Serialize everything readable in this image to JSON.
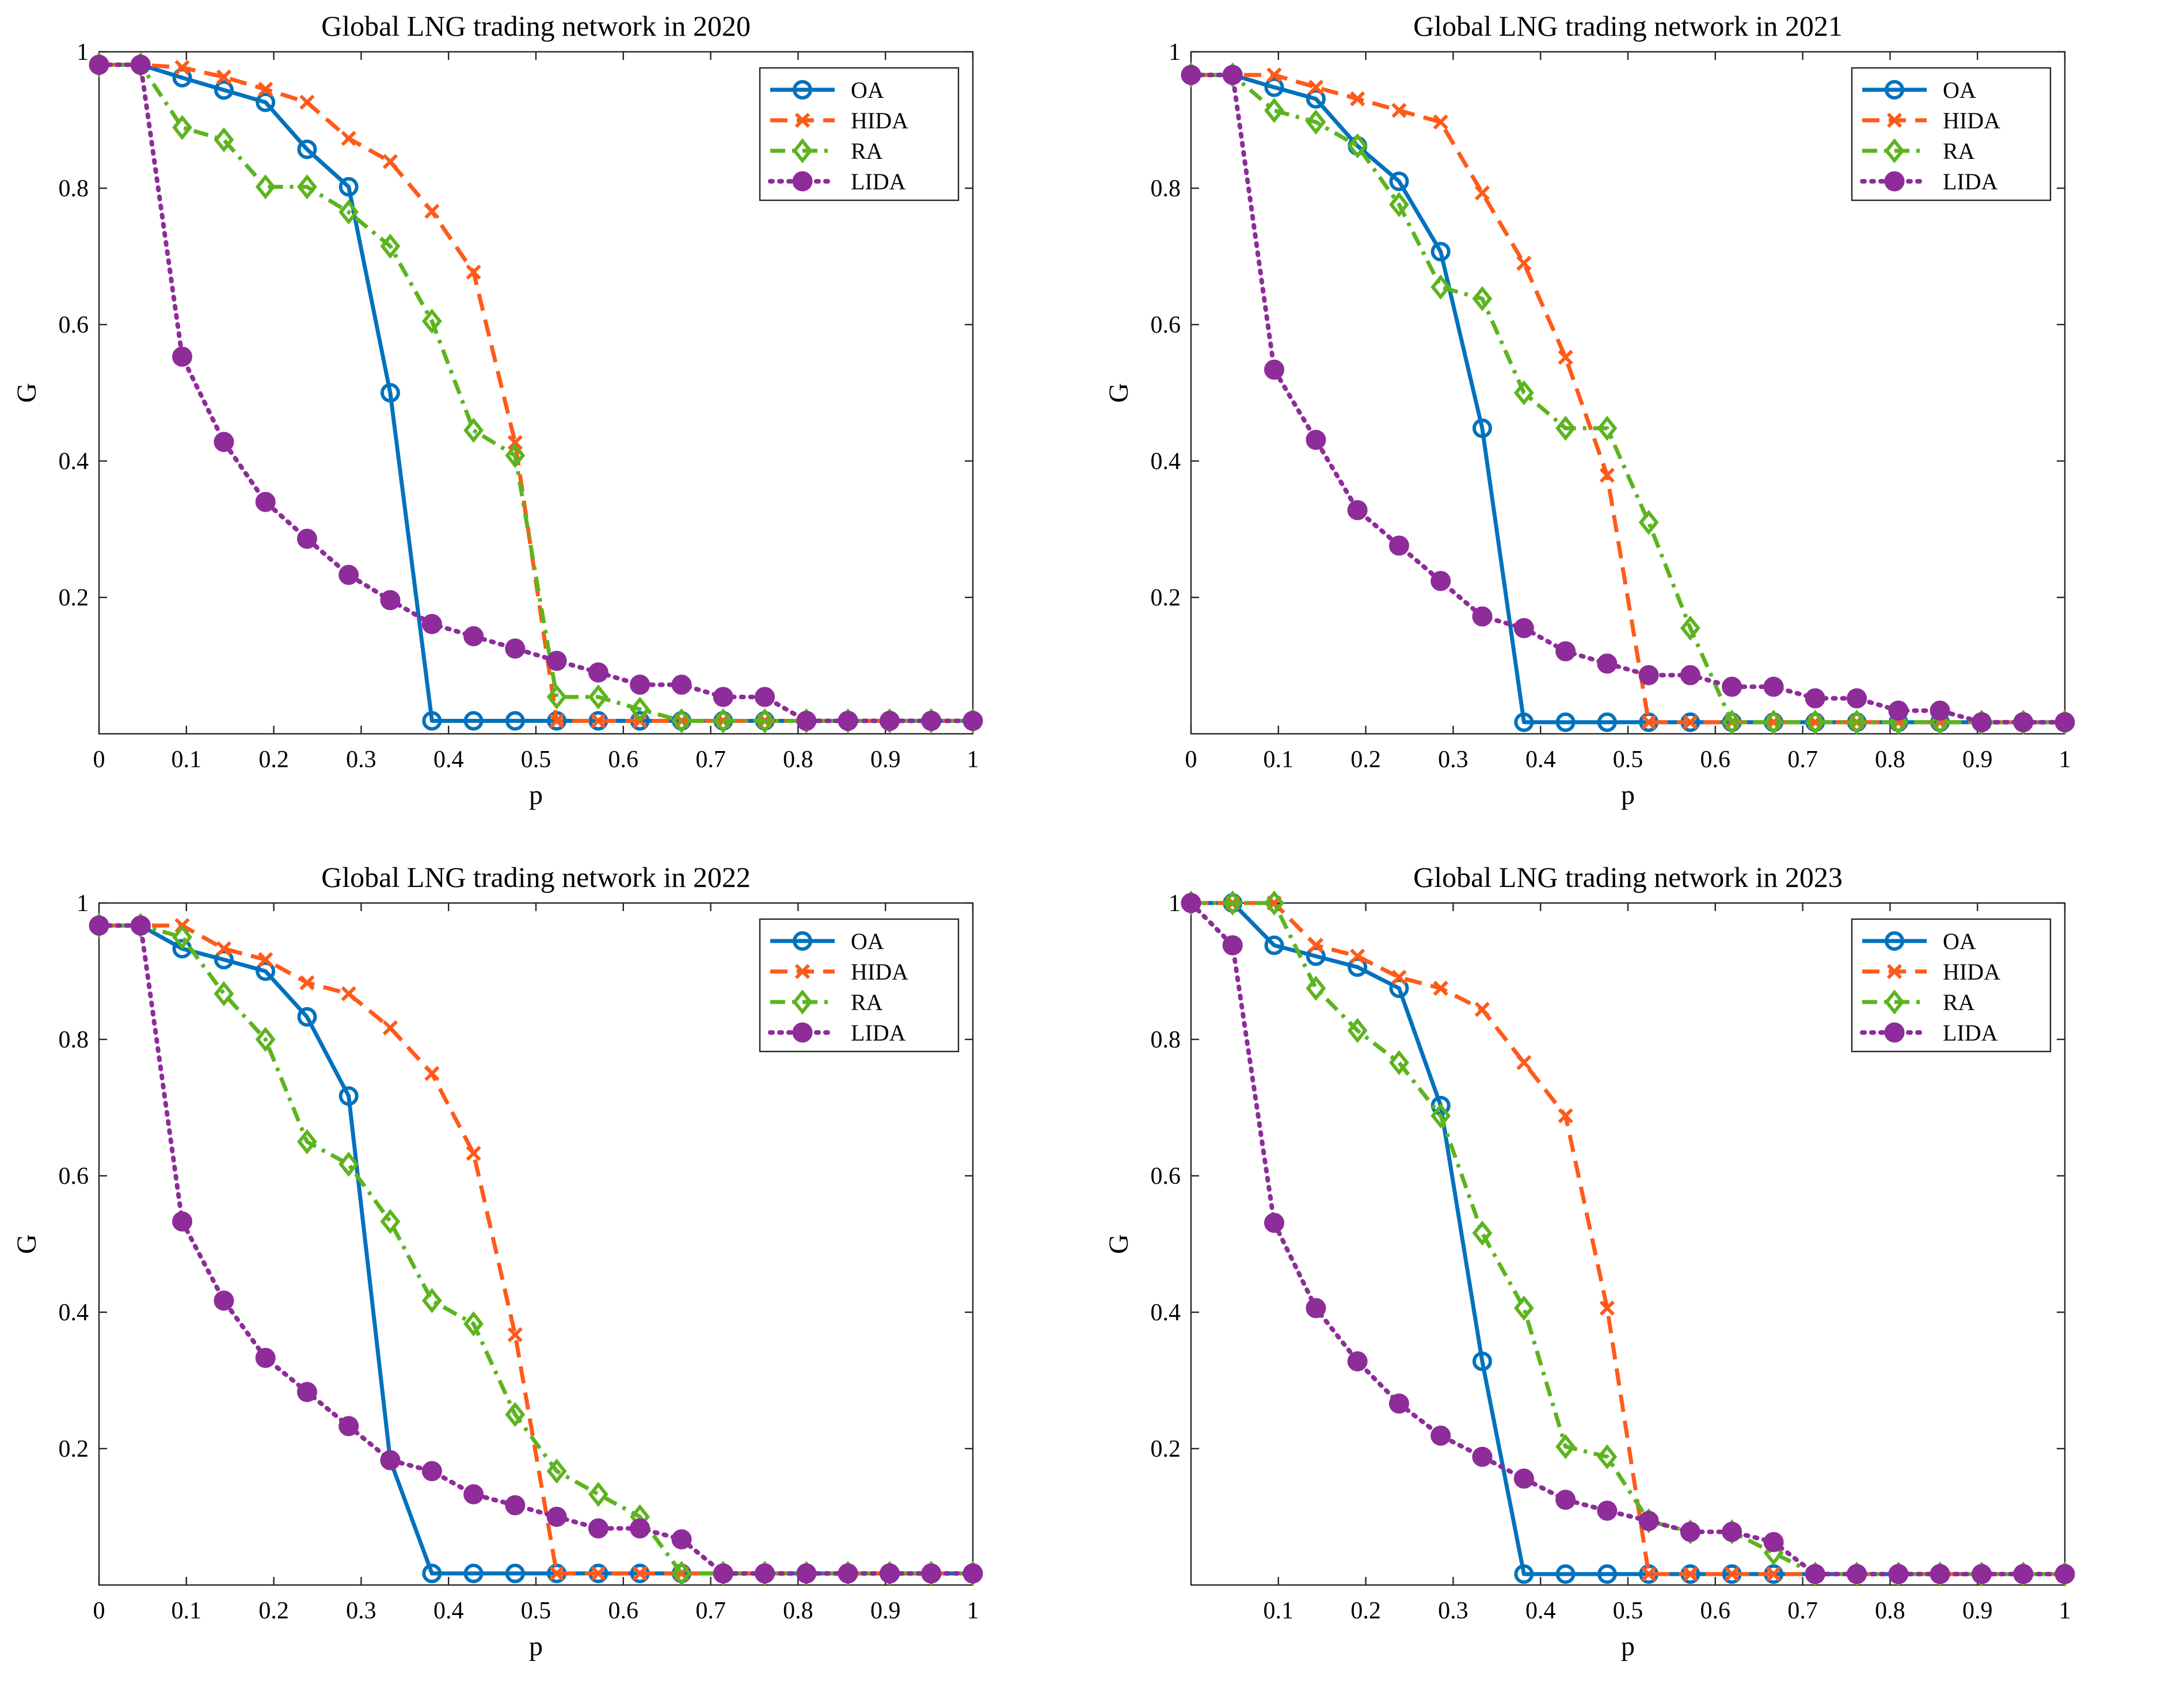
{
  "figure": {
    "colors": {
      "OA": "#0072BD",
      "HIDA": "#FF5A1A",
      "RA": "#5CB41E",
      "LIDA": "#8E2C9A"
    },
    "legend_entries": [
      "OA",
      "HIDA",
      "RA",
      "LIDA"
    ]
  },
  "chart_data": [
    {
      "type": "line",
      "title": "Global LNG trading network in 2020",
      "xlabel": "p",
      "ylabel": "G",
      "xlim": [
        0,
        1
      ],
      "ylim": [
        0,
        1
      ],
      "xticks": [
        "0",
        "0.1",
        "0.2",
        "0.3",
        "0.4",
        "0.5",
        "0.6",
        "0.7",
        "0.8",
        "0.9",
        "1"
      ],
      "yticks": [
        "0.2",
        "0.4",
        "0.6",
        "0.8",
        "1"
      ],
      "legend": "top-right",
      "grid": false,
      "x": [
        0,
        0.0476,
        0.0952,
        0.1429,
        0.1905,
        0.2381,
        0.2857,
        0.3333,
        0.381,
        0.4286,
        0.4762,
        0.5238,
        0.5714,
        0.619,
        0.6667,
        0.7143,
        0.7619,
        0.8095,
        0.8571,
        0.9048,
        0.9524,
        1
      ],
      "series": [
        {
          "name": "OA",
          "values": [
            0.981,
            0.981,
            0.962,
            0.944,
            0.926,
            0.857,
            0.802,
            0.5,
            0.019,
            0.019,
            0.019,
            0.019,
            0.019,
            0.019,
            0.019,
            0.019,
            0.019,
            0.019,
            0.019,
            0.019,
            0.019,
            0.019
          ]
        },
        {
          "name": "HIDA",
          "values": [
            0.981,
            0.981,
            0.977,
            0.963,
            0.945,
            0.926,
            0.873,
            0.839,
            0.766,
            0.677,
            0.427,
            0.019,
            0.019,
            0.019,
            0.019,
            0.019,
            0.019,
            0.019,
            0.019,
            0.019,
            0.019,
            0.019
          ]
        },
        {
          "name": "RA",
          "values": [
            0.981,
            0.981,
            0.889,
            0.871,
            0.802,
            0.802,
            0.765,
            0.715,
            0.605,
            0.445,
            0.408,
            0.054,
            0.054,
            0.036,
            0.019,
            0.019,
            0.019,
            0.019,
            0.019,
            0.019,
            0.019,
            0.019
          ]
        },
        {
          "name": "LIDA",
          "values": [
            0.981,
            0.981,
            0.553,
            0.428,
            0.34,
            0.286,
            0.233,
            0.196,
            0.161,
            0.143,
            0.125,
            0.107,
            0.09,
            0.072,
            0.072,
            0.054,
            0.054,
            0.019,
            0.019,
            0.019,
            0.019,
            0.019
          ]
        }
      ]
    },
    {
      "type": "line",
      "title": "Global LNG trading network in 2021",
      "xlabel": "p",
      "ylabel": "G",
      "xlim": [
        0,
        1
      ],
      "ylim": [
        0,
        1
      ],
      "xticks": [
        "0",
        "0.1",
        "0.2",
        "0.3",
        "0.4",
        "0.5",
        "0.6",
        "0.7",
        "0.8",
        "0.9",
        "1"
      ],
      "yticks": [
        "0.2",
        "0.4",
        "0.6",
        "0.8",
        "1"
      ],
      "legend": "top-right",
      "grid": false,
      "x": [
        0,
        0.0476,
        0.0952,
        0.1429,
        0.1905,
        0.2381,
        0.2857,
        0.3333,
        0.381,
        0.4286,
        0.4762,
        0.5238,
        0.5714,
        0.619,
        0.6667,
        0.7143,
        0.7619,
        0.8095,
        0.8571,
        0.9048,
        0.9524,
        1
      ],
      "series": [
        {
          "name": "OA",
          "values": [
            0.966,
            0.966,
            0.948,
            0.931,
            0.862,
            0.81,
            0.707,
            0.448,
            0.017,
            0.017,
            0.017,
            0.017,
            0.017,
            0.017,
            0.017,
            0.017,
            0.017,
            0.017,
            0.017,
            0.017,
            0.017,
            0.017
          ]
        },
        {
          "name": "HIDA",
          "values": [
            0.966,
            0.966,
            0.966,
            0.948,
            0.931,
            0.914,
            0.897,
            0.793,
            0.69,
            0.552,
            0.379,
            0.017,
            0.017,
            0.017,
            0.017,
            0.017,
            0.017,
            0.017,
            0.017,
            0.017,
            0.017,
            0.017
          ]
        },
        {
          "name": "RA",
          "values": [
            0.966,
            0.966,
            0.914,
            0.897,
            0.862,
            0.776,
            0.655,
            0.638,
            0.5,
            0.448,
            0.448,
            0.31,
            0.155,
            0.017,
            0.017,
            0.017,
            0.017,
            0.017,
            0.017,
            0.017,
            0.017,
            0.017
          ]
        },
        {
          "name": "LIDA",
          "values": [
            0.966,
            0.966,
            0.534,
            0.431,
            0.328,
            0.276,
            0.224,
            0.172,
            0.155,
            0.121,
            0.103,
            0.086,
            0.086,
            0.069,
            0.069,
            0.052,
            0.052,
            0.034,
            0.034,
            0.017,
            0.017,
            0.017
          ]
        }
      ]
    },
    {
      "type": "line",
      "title": "Global LNG trading network in 2022",
      "xlabel": "p",
      "ylabel": "G",
      "xlim": [
        0,
        1
      ],
      "ylim": [
        0,
        1
      ],
      "xticks": [
        "0",
        "0.1",
        "0.2",
        "0.3",
        "0.4",
        "0.5",
        "0.6",
        "0.7",
        "0.8",
        "0.9",
        "1"
      ],
      "yticks": [
        "0.2",
        "0.4",
        "0.6",
        "0.8",
        "1"
      ],
      "legend": "top-right",
      "grid": false,
      "x": [
        0,
        0.0476,
        0.0952,
        0.1429,
        0.1905,
        0.2381,
        0.2857,
        0.3333,
        0.381,
        0.4286,
        0.4762,
        0.5238,
        0.5714,
        0.619,
        0.6667,
        0.7143,
        0.7619,
        0.8095,
        0.8571,
        0.9048,
        0.9524,
        1
      ],
      "series": [
        {
          "name": "OA",
          "values": [
            0.967,
            0.967,
            0.933,
            0.917,
            0.9,
            0.833,
            0.717,
            0.183,
            0.017,
            0.017,
            0.017,
            0.017,
            0.017,
            0.017,
            0.017,
            0.017,
            0.017,
            0.017,
            0.017,
            0.017,
            0.017,
            0.017
          ]
        },
        {
          "name": "HIDA",
          "values": [
            0.967,
            0.967,
            0.967,
            0.933,
            0.917,
            0.883,
            0.867,
            0.817,
            0.75,
            0.633,
            0.367,
            0.017,
            0.017,
            0.017,
            0.017,
            0.017,
            0.017,
            0.017,
            0.017,
            0.017,
            0.017,
            0.017
          ]
        },
        {
          "name": "RA",
          "values": [
            0.967,
            0.967,
            0.95,
            0.867,
            0.8,
            0.65,
            0.617,
            0.533,
            0.417,
            0.383,
            0.25,
            0.167,
            0.133,
            0.1,
            0.017,
            0.017,
            0.017,
            0.017,
            0.017,
            0.017,
            0.017,
            0.017
          ]
        },
        {
          "name": "LIDA",
          "values": [
            0.967,
            0.967,
            0.533,
            0.417,
            0.333,
            0.283,
            0.233,
            0.183,
            0.167,
            0.133,
            0.117,
            0.1,
            0.083,
            0.083,
            0.067,
            0.017,
            0.017,
            0.017,
            0.017,
            0.017,
            0.017,
            0.017
          ]
        }
      ]
    },
    {
      "type": "line",
      "title": "Global LNG trading network in 2023",
      "xlabel": "p",
      "ylabel": "G",
      "xlim": [
        0,
        1
      ],
      "ylim": [
        0,
        1
      ],
      "xticks": [
        "0.1",
        "0.2",
        "0.3",
        "0.4",
        "0.5",
        "0.6",
        "0.7",
        "0.8",
        "0.9",
        "1"
      ],
      "yticks": [
        "0.2",
        "0.4",
        "0.6",
        "0.8",
        "1"
      ],
      "legend": "top-right",
      "grid": false,
      "x": [
        0,
        0.0476,
        0.0952,
        0.1429,
        0.1905,
        0.2381,
        0.2857,
        0.3333,
        0.381,
        0.4286,
        0.4762,
        0.5238,
        0.5714,
        0.619,
        0.6667,
        0.7143,
        0.7619,
        0.8095,
        0.8571,
        0.9048,
        0.9524,
        1
      ],
      "series": [
        {
          "name": "OA",
          "values": [
            1.0,
            1.0,
            0.938,
            0.922,
            0.906,
            0.875,
            0.703,
            0.328,
            0.016,
            0.016,
            0.016,
            0.016,
            0.016,
            0.016,
            0.016,
            0.016,
            0.016,
            0.016,
            0.016,
            0.016,
            0.016,
            0.016
          ]
        },
        {
          "name": "HIDA",
          "values": [
            1.0,
            1.0,
            1.0,
            0.938,
            0.922,
            0.891,
            0.875,
            0.844,
            0.766,
            0.688,
            0.406,
            0.016,
            0.016,
            0.016,
            0.016,
            0.016,
            0.016,
            0.016,
            0.016,
            0.016,
            0.016,
            0.016
          ]
        },
        {
          "name": "RA",
          "values": [
            1.0,
            1.0,
            1.0,
            0.875,
            0.813,
            0.766,
            0.688,
            0.516,
            0.406,
            0.203,
            0.188,
            0.094,
            0.078,
            0.078,
            0.047,
            0.016,
            0.016,
            0.016,
            0.016,
            0.016,
            0.016,
            0.016
          ]
        },
        {
          "name": "LIDA",
          "values": [
            1.0,
            0.938,
            0.531,
            0.406,
            0.328,
            0.266,
            0.219,
            0.188,
            0.156,
            0.125,
            0.109,
            0.094,
            0.078,
            0.078,
            0.063,
            0.016,
            0.016,
            0.016,
            0.016,
            0.016,
            0.016,
            0.016
          ]
        }
      ]
    }
  ]
}
